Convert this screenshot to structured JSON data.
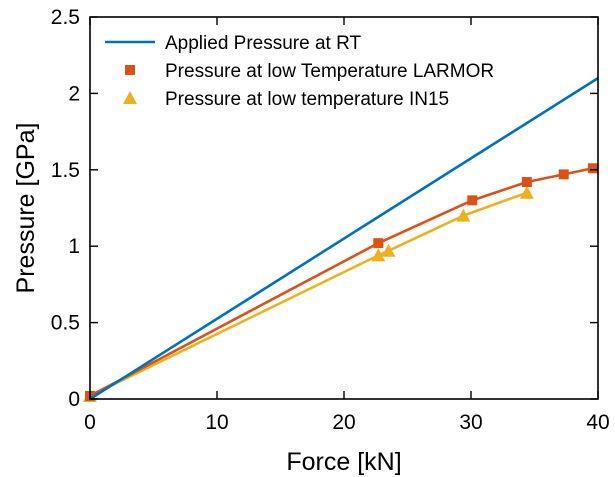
{
  "chart_data": {
    "type": "line",
    "title": "",
    "xlabel": "Force [kN]",
    "ylabel": "Pressure [GPa]",
    "xlim": [
      0,
      40
    ],
    "ylim": [
      0,
      2.5
    ],
    "xticks": [
      0,
      10,
      20,
      30,
      40
    ],
    "xtick_labels": [
      "0",
      "10",
      "20",
      "30",
      "40"
    ],
    "yticks": [
      0,
      0.5,
      1,
      1.5,
      2,
      2.5
    ],
    "ytick_labels": [
      "0",
      "0.5",
      "1",
      "1.5",
      "2",
      "2.5"
    ],
    "grid": false,
    "legend_position": "top-left",
    "series": [
      {
        "name": "Applied Pressure at RT",
        "color": "#0072BD",
        "marker": "none",
        "x": [
          0,
          40
        ],
        "y": [
          0,
          2.1
        ]
      },
      {
        "name": "Pressure at low Temperature LARMOR",
        "color": "#D95319",
        "marker": "square",
        "x": [
          0,
          22.7,
          30.1,
          34.4,
          37.3,
          39.6
        ],
        "y": [
          0.02,
          1.02,
          1.3,
          1.42,
          1.47,
          1.51
        ]
      },
      {
        "name": "Pressure at low temperature IN15",
        "color": "#EDB120",
        "marker": "triangle",
        "x": [
          0,
          22.7,
          23.5,
          29.4,
          34.4
        ],
        "y": [
          0.02,
          0.94,
          0.97,
          1.2,
          1.35
        ]
      }
    ]
  }
}
